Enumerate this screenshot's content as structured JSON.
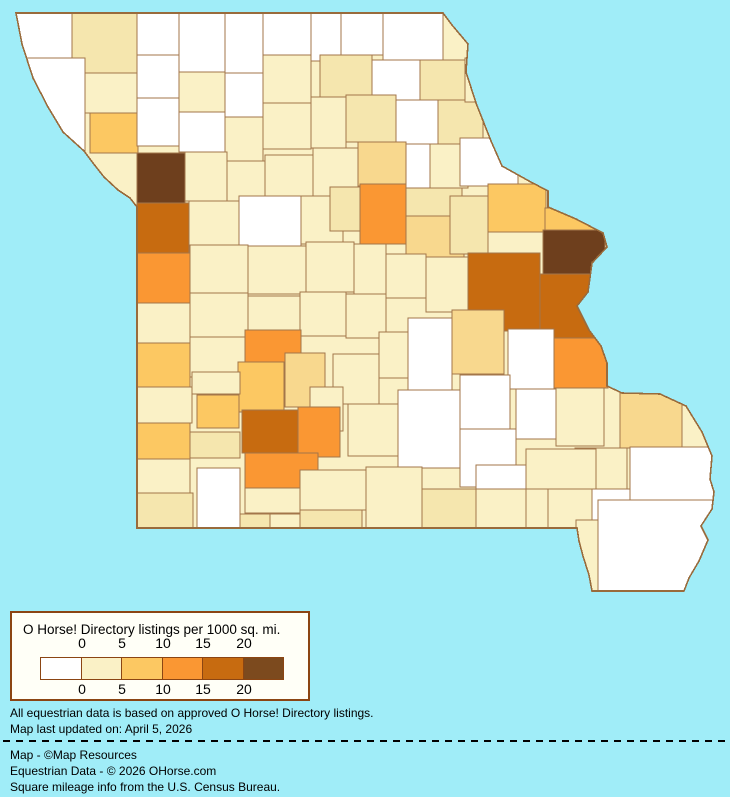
{
  "map": {
    "background_color": "#A0EDF8",
    "county_border_color": "#A3764A",
    "state_outline_color": "#996B3C",
    "palette": {
      "W": "#FFFFFF",
      "PY": "#FAF1C6",
      "PY2": "#F5E6AE",
      "LO2": "#F8D88E",
      "LO": "#FCC862",
      "O": "#FA9733",
      "DO": "#C76B10",
      "DB": "#7C4A1E",
      "DB2": "#6E3F1D"
    },
    "base_fill": "PY",
    "counties": [
      [
        16,
        13,
        56,
        45,
        "W"
      ],
      [
        72,
        13,
        65,
        60,
        "PY2"
      ],
      [
        137,
        13,
        42,
        42,
        "W"
      ],
      [
        179,
        13,
        46,
        59,
        "W"
      ],
      [
        225,
        13,
        38,
        60,
        "W"
      ],
      [
        263,
        13,
        48,
        42,
        "W"
      ],
      [
        311,
        13,
        30,
        48,
        "W"
      ],
      [
        341,
        13,
        42,
        42,
        "W"
      ],
      [
        383,
        13,
        60,
        47,
        "W"
      ],
      [
        25,
        58,
        60,
        96,
        "W"
      ],
      [
        85,
        73,
        52,
        40,
        "PY"
      ],
      [
        137,
        55,
        42,
        43,
        "W"
      ],
      [
        179,
        72,
        46,
        40,
        "PY"
      ],
      [
        225,
        73,
        38,
        44,
        "W"
      ],
      [
        263,
        55,
        48,
        48,
        "PY"
      ],
      [
        320,
        55,
        52,
        42,
        "PY2"
      ],
      [
        372,
        60,
        48,
        40,
        "W"
      ],
      [
        420,
        60,
        46,
        42,
        "PY2"
      ],
      [
        90,
        113,
        48,
        40,
        "LO"
      ],
      [
        137,
        98,
        42,
        48,
        "W"
      ],
      [
        179,
        112,
        46,
        40,
        "W"
      ],
      [
        225,
        117,
        38,
        44,
        "PY"
      ],
      [
        263,
        103,
        48,
        46,
        "PY"
      ],
      [
        311,
        97,
        35,
        51,
        "PY"
      ],
      [
        346,
        95,
        50,
        47,
        "PY2"
      ],
      [
        396,
        100,
        42,
        44,
        "W"
      ],
      [
        438,
        100,
        45,
        44,
        "PY2"
      ],
      [
        465,
        58,
        40,
        44,
        "PY"
      ],
      [
        137,
        153,
        48,
        50,
        "DB2"
      ],
      [
        185,
        152,
        42,
        49,
        "PY"
      ],
      [
        227,
        161,
        38,
        42,
        "PY"
      ],
      [
        265,
        155,
        48,
        42,
        "PY"
      ],
      [
        313,
        148,
        45,
        50,
        "PY"
      ],
      [
        358,
        142,
        48,
        44,
        "LO2"
      ],
      [
        406,
        144,
        50,
        44,
        "W"
      ],
      [
        430,
        144,
        38,
        44,
        "PY"
      ],
      [
        460,
        138,
        58,
        48,
        "W"
      ],
      [
        137,
        203,
        52,
        50,
        "DO"
      ],
      [
        189,
        201,
        50,
        44,
        "PY"
      ],
      [
        239,
        196,
        62,
        50,
        "W"
      ],
      [
        301,
        196,
        42,
        48,
        "PY"
      ],
      [
        330,
        187,
        32,
        44,
        "PY2"
      ],
      [
        360,
        184,
        46,
        60,
        "O"
      ],
      [
        406,
        188,
        56,
        28,
        "PY2"
      ],
      [
        406,
        216,
        58,
        46,
        "LO2"
      ],
      [
        450,
        196,
        38,
        58,
        "PY2"
      ],
      [
        488,
        184,
        58,
        48,
        "LO"
      ],
      [
        545,
        208,
        58,
        24,
        "LO"
      ],
      [
        543,
        230,
        62,
        50,
        "DB2"
      ],
      [
        137,
        253,
        53,
        50,
        "O"
      ],
      [
        190,
        245,
        58,
        48,
        "PY"
      ],
      [
        248,
        246,
        58,
        48,
        "PY"
      ],
      [
        306,
        242,
        48,
        50,
        "PY"
      ],
      [
        354,
        244,
        32,
        50,
        "PY"
      ],
      [
        386,
        254,
        40,
        44,
        "PY"
      ],
      [
        426,
        257,
        42,
        55,
        "PY"
      ],
      [
        468,
        253,
        72,
        78,
        "DO"
      ],
      [
        540,
        274,
        56,
        64,
        "DO"
      ],
      [
        592,
        262,
        20,
        42,
        "W"
      ],
      [
        137,
        303,
        53,
        40,
        "PY"
      ],
      [
        190,
        293,
        58,
        44,
        "PY"
      ],
      [
        248,
        296,
        52,
        40,
        "PY"
      ],
      [
        300,
        292,
        46,
        44,
        "PY"
      ],
      [
        346,
        294,
        40,
        44,
        "PY"
      ],
      [
        137,
        343,
        53,
        44,
        "LO"
      ],
      [
        190,
        337,
        58,
        40,
        "PY"
      ],
      [
        245,
        330,
        56,
        36,
        "O"
      ],
      [
        238,
        362,
        46,
        50,
        "LO"
      ],
      [
        285,
        353,
        40,
        54,
        "LO2"
      ],
      [
        333,
        354,
        46,
        50,
        "PY"
      ],
      [
        379,
        332,
        42,
        46,
        "PY"
      ],
      [
        310,
        387,
        33,
        44,
        "PY"
      ],
      [
        408,
        318,
        44,
        72,
        "W"
      ],
      [
        452,
        310,
        52,
        64,
        "LO2"
      ],
      [
        508,
        329,
        46,
        60,
        "W"
      ],
      [
        554,
        338,
        54,
        50,
        "O"
      ],
      [
        137,
        387,
        55,
        36,
        "PY"
      ],
      [
        192,
        372,
        48,
        22,
        "PY"
      ],
      [
        197,
        395,
        42,
        33,
        "LO"
      ],
      [
        242,
        410,
        57,
        43,
        "DO"
      ],
      [
        298,
        407,
        42,
        50,
        "O"
      ],
      [
        348,
        404,
        58,
        52,
        "PY"
      ],
      [
        245,
        453,
        73,
        35,
        "O"
      ],
      [
        245,
        488,
        64,
        25,
        "PY"
      ],
      [
        398,
        390,
        62,
        78,
        "W"
      ],
      [
        460,
        375,
        50,
        54,
        "W"
      ],
      [
        460,
        429,
        56,
        58,
        "W"
      ],
      [
        516,
        389,
        40,
        50,
        "W"
      ],
      [
        556,
        388,
        48,
        58,
        "PY"
      ],
      [
        620,
        390,
        62,
        58,
        "LO2"
      ],
      [
        575,
        448,
        52,
        66,
        "PY"
      ],
      [
        137,
        423,
        53,
        36,
        "LO"
      ],
      [
        190,
        432,
        50,
        26,
        "PY2"
      ],
      [
        137,
        459,
        53,
        34,
        "PY"
      ],
      [
        137,
        493,
        56,
        35,
        "PY2"
      ],
      [
        197,
        468,
        43,
        62,
        "W"
      ],
      [
        240,
        514,
        30,
        16,
        "PY2"
      ],
      [
        270,
        514,
        52,
        16,
        "PY"
      ],
      [
        300,
        470,
        66,
        40,
        "PY"
      ],
      [
        300,
        510,
        62,
        18,
        "PY2"
      ],
      [
        366,
        467,
        56,
        61,
        "PY"
      ],
      [
        422,
        489,
        54,
        39,
        "PY2"
      ],
      [
        476,
        465,
        66,
        24,
        "W"
      ],
      [
        476,
        489,
        50,
        40,
        "PY"
      ],
      [
        526,
        449,
        70,
        40,
        "PY"
      ],
      [
        526,
        489,
        50,
        40,
        "PY"
      ],
      [
        630,
        447,
        85,
        73,
        "W"
      ],
      [
        548,
        489,
        44,
        40,
        "PY"
      ],
      [
        592,
        489,
        38,
        42,
        "W"
      ],
      [
        576,
        520,
        22,
        72,
        "PY"
      ],
      [
        598,
        500,
        115,
        92,
        "W"
      ]
    ]
  },
  "legend": {
    "title": "O Horse! Directory listings per 1000 sq. mi.",
    "swatch_colors": [
      "#FFFFFF",
      "#FAF1C6",
      "#FCC862",
      "#FA9733",
      "#C76B10",
      "#7C4A1E"
    ],
    "ticks_top": [
      "0",
      "5",
      "10",
      "15",
      "20"
    ],
    "ticks_bottom": [
      "0",
      "5",
      "10",
      "15",
      "20"
    ]
  },
  "notes": {
    "line1": "All equestrian data is based on approved O Horse! Directory listings.",
    "line2": "Map last updated on: April 5, 2026"
  },
  "attribution": {
    "line1": "Map - ©Map Resources",
    "line2": "Equestrian Data - © 2026 OHorse.com",
    "line3": "Square mileage info from the U.S. Census Bureau."
  }
}
